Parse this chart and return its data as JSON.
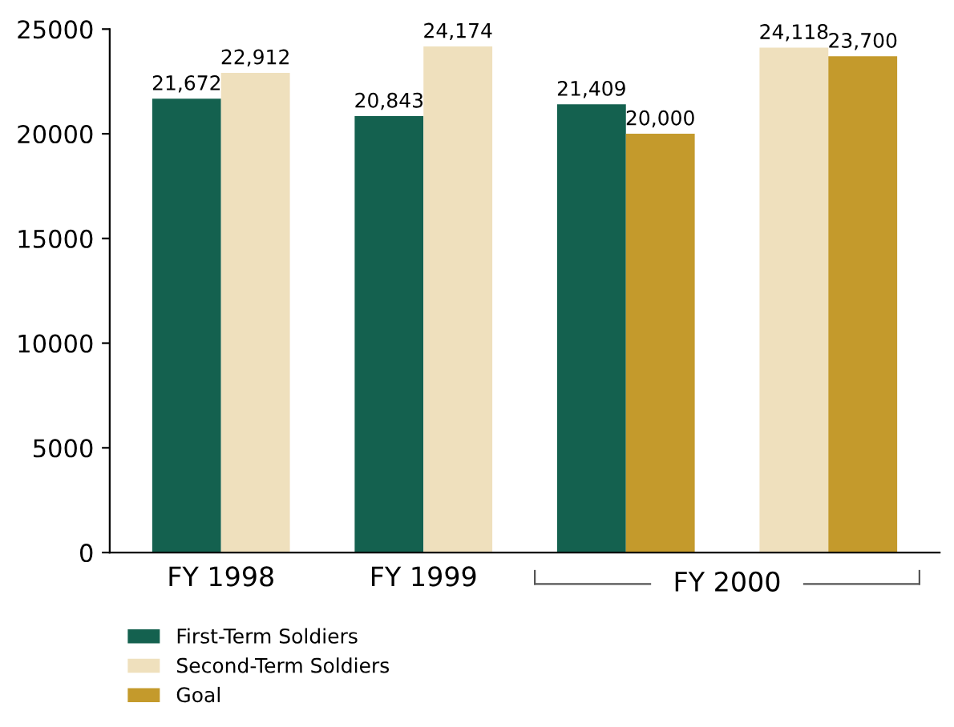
{
  "chart_data": {
    "type": "bar",
    "categories": [
      "FY 1998",
      "FY 1999",
      null,
      null
    ],
    "series": [
      {
        "name": "First-Term Soldiers",
        "color": "#14614f",
        "values": [
          21672,
          20843,
          21409,
          null
        ]
      },
      {
        "name": "Second-Term Soldiers",
        "color": "#efe0bd",
        "values": [
          22912,
          24174,
          null,
          24118
        ]
      },
      {
        "name": "Goal",
        "color": "#c49a2c",
        "values": [
          null,
          null,
          20000,
          23700
        ]
      }
    ],
    "ylim": [
      0,
      25000
    ],
    "yticks": [
      0,
      5000,
      10000,
      15000,
      20000,
      25000
    ],
    "value_labels": [
      [
        "21,672",
        "20,843",
        "21,409",
        null
      ],
      [
        "22,912",
        "24,174",
        null,
        "24,118"
      ],
      [
        null,
        null,
        "20,000",
        "23,700"
      ]
    ],
    "annotations": [
      "FY 2000"
    ],
    "grid": false,
    "legend": "bottom left"
  }
}
